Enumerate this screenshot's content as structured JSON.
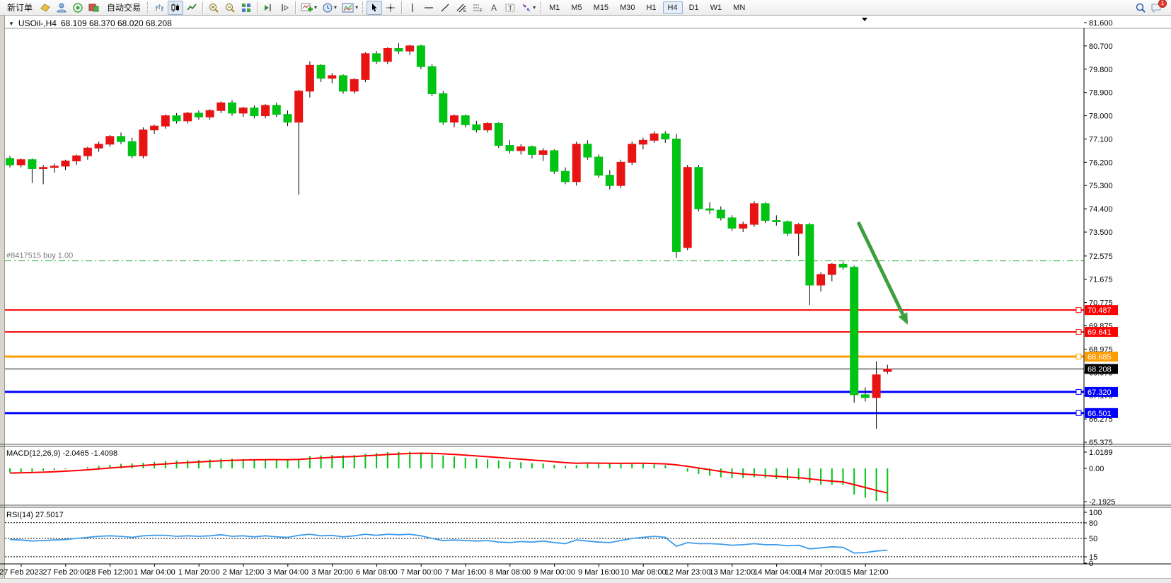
{
  "toolbar": {
    "new_order_label": "新订单",
    "autotrade_label": "自动交易",
    "timeframe_buttons": [
      "M1",
      "M5",
      "M15",
      "M30",
      "H1",
      "H4",
      "D1",
      "W1",
      "MN"
    ],
    "active_timeframe": "H4",
    "notification_badge": "1"
  },
  "chart": {
    "symbol_title": "USOil-,H4",
    "ohlc_quote": "68.109 68.370 68.020 68.208",
    "order_line_label": "#8417515 buy 1.00"
  },
  "chart_data": {
    "type": "candlestick",
    "symbol": "USOil",
    "timeframe": "H4",
    "up_color": "#e81414",
    "down_color": "#00c314",
    "wick_color": "#000000",
    "ylim": [
      65.36,
      81.75
    ],
    "price_ticks": [
      "81.600",
      "80.700",
      "79.800",
      "78.900",
      "78.000",
      "77.100",
      "76.200",
      "75.300",
      "74.400",
      "73.500",
      "72.575",
      "71.675",
      "70.775",
      "69.875",
      "68.975",
      "68.075",
      "67.175",
      "66.275",
      "65.375"
    ],
    "time_labels": [
      "27 Feb 2023",
      "27 Feb 20:00",
      "28 Feb 12:00",
      "1 Mar 04:00",
      "1 Mar 20:00",
      "2 Mar 12:00",
      "3 Mar 04:00",
      "3 Mar 20:00",
      "6 Mar 08:00",
      "7 Mar 00:00",
      "7 Mar 16:00",
      "8 Mar 08:00",
      "9 Mar 00:00",
      "9 Mar 16:00",
      "10 Mar 08:00",
      "12 Mar 23:00",
      "13 Mar 12:00",
      "14 Mar 04:00",
      "14 Mar 20:00",
      "15 Mar 12:00"
    ],
    "candles": [
      [
        76.35,
        76.45,
        76.0,
        76.1
      ],
      [
        76.1,
        76.35,
        76.0,
        76.3
      ],
      [
        76.3,
        76.35,
        75.4,
        75.95
      ],
      [
        75.95,
        76.1,
        75.35,
        76.0
      ],
      [
        76.0,
        76.15,
        75.8,
        76.05
      ],
      [
        76.05,
        76.3,
        75.9,
        76.25
      ],
      [
        76.25,
        76.5,
        76.1,
        76.45
      ],
      [
        76.45,
        76.8,
        76.3,
        76.75
      ],
      [
        76.75,
        77.0,
        76.6,
        76.9
      ],
      [
        76.9,
        77.25,
        76.8,
        77.2
      ],
      [
        77.2,
        77.35,
        76.9,
        77.0
      ],
      [
        77.0,
        77.15,
        76.35,
        76.45
      ],
      [
        76.45,
        77.55,
        76.35,
        77.45
      ],
      [
        77.45,
        77.65,
        77.3,
        77.6
      ],
      [
        77.6,
        78.05,
        77.5,
        78.0
      ],
      [
        78.0,
        78.1,
        77.7,
        77.8
      ],
      [
        77.8,
        78.15,
        77.7,
        78.1
      ],
      [
        78.1,
        78.2,
        77.85,
        77.95
      ],
      [
        77.95,
        78.25,
        77.85,
        78.2
      ],
      [
        78.2,
        78.55,
        78.1,
        78.5
      ],
      [
        78.5,
        78.6,
        78.0,
        78.1
      ],
      [
        78.1,
        78.35,
        77.95,
        78.3
      ],
      [
        78.3,
        78.4,
        77.9,
        78.0
      ],
      [
        78.0,
        78.45,
        77.9,
        78.4
      ],
      [
        78.4,
        78.5,
        77.95,
        78.05
      ],
      [
        78.05,
        78.2,
        77.6,
        77.75
      ],
      [
        77.75,
        79.0,
        74.95,
        78.95
      ],
      [
        78.95,
        80.1,
        78.7,
        79.95
      ],
      [
        79.95,
        80.0,
        79.3,
        79.45
      ],
      [
        79.45,
        79.65,
        79.25,
        79.55
      ],
      [
        79.55,
        79.6,
        78.85,
        78.95
      ],
      [
        78.95,
        79.45,
        78.85,
        79.4
      ],
      [
        79.4,
        80.45,
        79.3,
        80.4
      ],
      [
        80.4,
        80.5,
        80.0,
        80.1
      ],
      [
        80.1,
        80.65,
        80.0,
        80.6
      ],
      [
        80.6,
        80.8,
        80.4,
        80.5
      ],
      [
        80.5,
        80.75,
        80.35,
        80.7
      ],
      [
        80.7,
        80.75,
        79.8,
        79.9
      ],
      [
        79.9,
        80.0,
        78.75,
        78.85
      ],
      [
        78.85,
        78.95,
        77.65,
        77.75
      ],
      [
        77.75,
        78.05,
        77.55,
        78.0
      ],
      [
        78.0,
        78.05,
        77.55,
        77.65
      ],
      [
        77.65,
        77.8,
        77.35,
        77.45
      ],
      [
        77.45,
        77.75,
        77.35,
        77.7
      ],
      [
        77.7,
        77.75,
        76.75,
        76.85
      ],
      [
        76.85,
        77.05,
        76.55,
        76.65
      ],
      [
        76.65,
        76.9,
        76.5,
        76.8
      ],
      [
        76.8,
        76.85,
        76.35,
        76.5
      ],
      [
        76.5,
        76.75,
        76.25,
        76.65
      ],
      [
        76.65,
        76.7,
        75.75,
        75.85
      ],
      [
        75.85,
        76.0,
        75.35,
        75.45
      ],
      [
        75.45,
        77.0,
        75.3,
        76.9
      ],
      [
        76.9,
        77.05,
        76.3,
        76.4
      ],
      [
        76.4,
        76.5,
        75.6,
        75.7
      ],
      [
        75.7,
        75.9,
        75.15,
        75.3
      ],
      [
        75.3,
        76.3,
        75.2,
        76.2
      ],
      [
        76.2,
        77.0,
        76.1,
        76.9
      ],
      [
        76.9,
        77.15,
        76.7,
        77.05
      ],
      [
        77.05,
        77.4,
        76.95,
        77.3
      ],
      [
        77.3,
        77.4,
        76.95,
        77.1
      ],
      [
        77.1,
        77.3,
        72.5,
        72.75
      ],
      [
        72.9,
        76.1,
        72.8,
        76.0
      ],
      [
        76.0,
        76.1,
        74.3,
        74.4
      ],
      [
        74.4,
        74.65,
        74.2,
        74.35
      ],
      [
        74.35,
        74.5,
        73.95,
        74.05
      ],
      [
        74.05,
        74.15,
        73.55,
        73.65
      ],
      [
        73.65,
        73.9,
        73.5,
        73.8
      ],
      [
        73.8,
        74.7,
        73.7,
        74.6
      ],
      [
        74.6,
        74.65,
        73.85,
        73.95
      ],
      [
        73.95,
        74.15,
        73.75,
        73.9
      ],
      [
        73.9,
        73.95,
        73.35,
        73.45
      ],
      [
        73.45,
        73.85,
        72.58,
        73.79
      ],
      [
        73.79,
        73.85,
        70.68,
        71.45
      ],
      [
        71.45,
        71.95,
        71.2,
        71.86
      ],
      [
        71.86,
        72.3,
        71.6,
        72.26
      ],
      [
        72.26,
        72.35,
        72.05,
        72.14
      ],
      [
        72.14,
        72.2,
        66.9,
        67.21
      ],
      [
        67.21,
        67.5,
        66.95,
        67.1
      ],
      [
        67.1,
        68.5,
        65.9,
        67.98
      ],
      [
        68.109,
        68.37,
        68.02,
        68.208
      ]
    ],
    "hlines": [
      {
        "price": 70.487,
        "label": "70.487",
        "color": "#ff0000",
        "width": 2
      },
      {
        "price": 69.641,
        "label": "69.641",
        "color": "#ff0000",
        "width": 2
      },
      {
        "price": 68.685,
        "label": "68.685",
        "color": "#ff9c00",
        "width": 3
      },
      {
        "price": 68.208,
        "label": "68.208",
        "color": "#000000",
        "width": 1,
        "current": true
      },
      {
        "price": 67.32,
        "label": "67.320",
        "color": "#0000ff",
        "width": 3
      },
      {
        "price": 66.501,
        "label": "66.501",
        "color": "#0000ff",
        "width": 3
      }
    ],
    "order_line": {
      "price": 72.39,
      "color": "#33b333",
      "style": "dashdot"
    },
    "annotation_arrow": {
      "from": [
        1213,
        292
      ],
      "to": [
        1283,
        437
      ],
      "color": "#3c9e3c"
    },
    "macd": {
      "label": "MACD(12,26,9)",
      "values_text": "-2.0465 -1.4098",
      "axis_labels": [
        "1.0189",
        "0.00",
        "-2.1925"
      ],
      "hist_color": "#00c314",
      "signal_color": "#ff0000",
      "histogram": [
        -0.25,
        -0.22,
        -0.2,
        -0.15,
        -0.1,
        -0.05,
        0.0,
        0.08,
        0.15,
        0.22,
        0.28,
        0.3,
        0.35,
        0.4,
        0.45,
        0.48,
        0.5,
        0.52,
        0.55,
        0.6,
        0.6,
        0.58,
        0.56,
        0.58,
        0.55,
        0.52,
        0.6,
        0.75,
        0.8,
        0.82,
        0.8,
        0.82,
        0.9,
        0.95,
        1.0,
        1.02,
        1.02,
        0.98,
        0.9,
        0.8,
        0.72,
        0.65,
        0.6,
        0.55,
        0.5,
        0.42,
        0.38,
        0.32,
        0.3,
        0.22,
        0.15,
        0.2,
        0.35,
        0.3,
        0.28,
        0.3,
        0.35,
        0.3,
        0.25,
        0.2,
        0.0,
        -0.2,
        -0.35,
        -0.45,
        -0.55,
        -0.6,
        -0.6,
        -0.55,
        -0.6,
        -0.65,
        -0.7,
        -0.7,
        -0.9,
        -1.0,
        -1.0,
        -1.0,
        -1.6,
        -1.8,
        -2.0,
        -2.0465
      ]
    },
    "rsi": {
      "label": "RSI(14)",
      "value_text": "27.5017",
      "axis_labels": [
        "100",
        "80",
        "50",
        "15",
        "0"
      ],
      "levels": [
        80,
        50,
        15
      ],
      "line_color": "#3d9be9",
      "values": [
        48,
        47,
        45,
        46,
        47,
        48,
        50,
        52,
        54,
        55,
        54,
        52,
        55,
        56,
        56,
        54,
        55,
        54,
        55,
        57,
        54,
        55,
        53,
        55,
        53,
        52,
        56,
        58,
        55,
        56,
        53,
        55,
        58,
        56,
        58,
        57,
        58,
        55,
        50,
        46,
        47,
        46,
        45,
        46,
        43,
        42,
        44,
        43,
        45,
        42,
        40,
        47,
        45,
        43,
        42,
        46,
        50,
        52,
        54,
        52,
        35,
        42,
        40,
        40,
        39,
        37,
        38,
        40,
        38,
        38,
        36,
        37,
        30,
        32,
        34,
        33,
        22,
        23,
        26,
        27.5
      ]
    }
  }
}
